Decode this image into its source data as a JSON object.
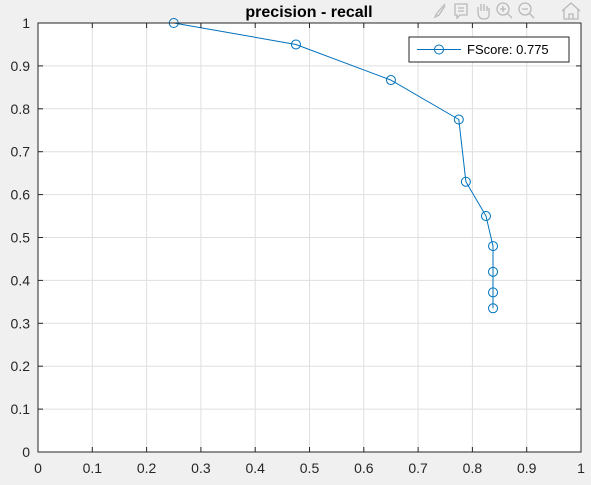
{
  "chart_data": {
    "type": "line",
    "title": "precision - recall",
    "xlabel": "",
    "ylabel": "",
    "xlim": [
      0,
      1
    ],
    "ylim": [
      0,
      1
    ],
    "xticks": [
      "0",
      "0.1",
      "0.2",
      "0.3",
      "0.4",
      "0.5",
      "0.6",
      "0.7",
      "0.8",
      "0.9",
      "1"
    ],
    "yticks": [
      "0",
      "0.1",
      "0.2",
      "0.3",
      "0.4",
      "0.5",
      "0.6",
      "0.7",
      "0.8",
      "0.9",
      "1"
    ],
    "grid": true,
    "legend_position": "top-right",
    "series": [
      {
        "name": "FScore: 0.775",
        "color": "#0072bd",
        "marker": "circle",
        "x": [
          0.25,
          0.475,
          0.65,
          0.775,
          0.788,
          0.825,
          0.838,
          0.838,
          0.838,
          0.838
        ],
        "y": [
          1.0,
          0.95,
          0.867,
          0.775,
          0.63,
          0.55,
          0.48,
          0.42,
          0.372,
          0.335
        ]
      }
    ]
  },
  "toolbar": {
    "icons": [
      "brush-icon",
      "data-tip-icon",
      "pan-hand-icon",
      "zoom-in-icon",
      "zoom-out-icon",
      "home-icon"
    ]
  }
}
